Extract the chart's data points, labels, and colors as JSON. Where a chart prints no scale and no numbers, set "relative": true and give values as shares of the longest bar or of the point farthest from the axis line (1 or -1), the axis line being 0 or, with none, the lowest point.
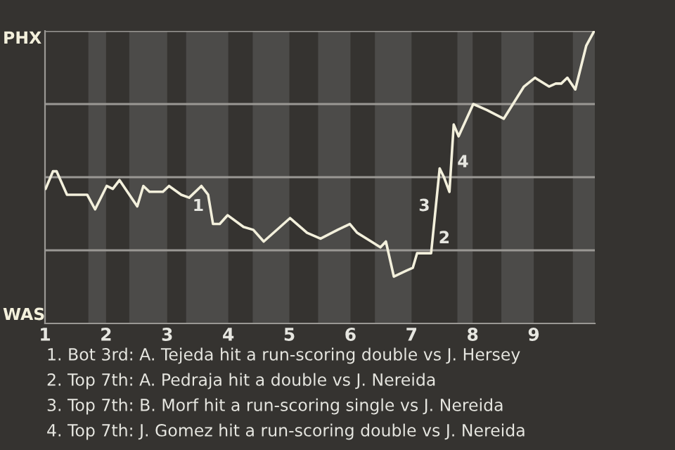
{
  "chart_data": {
    "type": "line",
    "relative": true,
    "x": [
      1.01,
      1.13,
      1.19,
      1.36,
      1.69,
      1.82,
      2.01,
      2.11,
      2.22,
      2.51,
      2.61,
      2.71,
      2.93,
      3.03,
      3.23,
      3.36,
      3.56,
      3.67,
      3.75,
      3.86,
      3.99,
      4.25,
      4.41,
      4.58,
      5.01,
      5.29,
      5.51,
      5.79,
      5.99,
      6.11,
      6.34,
      6.49,
      6.58,
      6.71,
      6.91,
      7.02,
      7.09,
      7.32,
      7.46,
      7.53,
      7.62,
      7.69,
      7.77,
      8.01,
      8.23,
      8.51,
      8.84,
      9.02,
      9.25,
      9.36,
      9.45,
      9.55,
      9.68,
      9.86,
      9.99
    ],
    "series": [
      {
        "color": "#f3f0dc",
        "values": [
          0.46,
          0.52,
          0.52,
          0.44,
          0.44,
          0.39,
          0.47,
          0.46,
          0.49,
          0.4,
          0.47,
          0.45,
          0.45,
          0.47,
          0.44,
          0.43,
          0.47,
          0.44,
          0.34,
          0.34,
          0.37,
          0.33,
          0.32,
          0.28,
          0.36,
          0.31,
          0.29,
          0.32,
          0.34,
          0.31,
          0.28,
          0.26,
          0.28,
          0.16,
          0.18,
          0.19,
          0.24,
          0.24,
          0.53,
          0.5,
          0.45,
          0.68,
          0.64,
          0.75,
          0.73,
          0.7,
          0.81,
          0.84,
          0.81,
          0.82,
          0.82,
          0.84,
          0.8,
          0.95,
          1.0
        ]
      }
    ],
    "xlim": [
      1,
      10
    ],
    "xticks": [
      1,
      2,
      3,
      4,
      5,
      6,
      7,
      8,
      9
    ],
    "line_style": "solid",
    "ref_lines": [
      {
        "axis": "y",
        "value": 0.25,
        "color": "#9a9894"
      },
      {
        "axis": "y",
        "value": 0.5,
        "color": "#9a9894"
      },
      {
        "axis": "y",
        "value": 0.75,
        "color": "#9a9894"
      },
      {
        "axis": "y",
        "value": 1.0,
        "color": "#9a9894"
      }
    ],
    "bands": [
      {
        "axis": "x",
        "from": 1.71,
        "to": 2,
        "color": "#4c4b49"
      },
      {
        "axis": "x",
        "from": 2.38,
        "to": 3,
        "color": "#4c4b49"
      },
      {
        "axis": "x",
        "from": 3.31,
        "to": 4,
        "color": "#4c4b49"
      },
      {
        "axis": "x",
        "from": 4.4,
        "to": 5,
        "color": "#4c4b49"
      },
      {
        "axis": "x",
        "from": 5.47,
        "to": 6,
        "color": "#4c4b49"
      },
      {
        "axis": "x",
        "from": 6.4,
        "to": 7,
        "color": "#4c4b49"
      },
      {
        "axis": "x",
        "from": 7.75,
        "to": 8,
        "color": "#4c4b49"
      },
      {
        "axis": "x",
        "from": 8.47,
        "to": 9,
        "color": "#4c4b49"
      },
      {
        "axis": "x",
        "from": 9.64,
        "to": 10,
        "color": "#4c4b49"
      }
    ],
    "annotations": [
      "PHX",
      "WAS",
      {
        "text": "1",
        "x": 3.7,
        "y": 0.4
      },
      {
        "text": "2",
        "x": 7.344,
        "y": 0.29
      },
      {
        "text": "3",
        "x": 7.4,
        "y": 0.4
      },
      {
        "text": "4",
        "x": 7.65,
        "y": 0.55
      },
      "1. Bot 3rd: A. Tejeda hit a run-scoring double vs J. Hersey",
      "2. Top 7th: A. Pedraja hit a double vs J. Nereida",
      "3. Top 7th: B. Morf hit a run-scoring single vs J. Nereida",
      "4. Top 7th: J. Gomez hit a run-scoring double vs J. Nereida"
    ]
  }
}
